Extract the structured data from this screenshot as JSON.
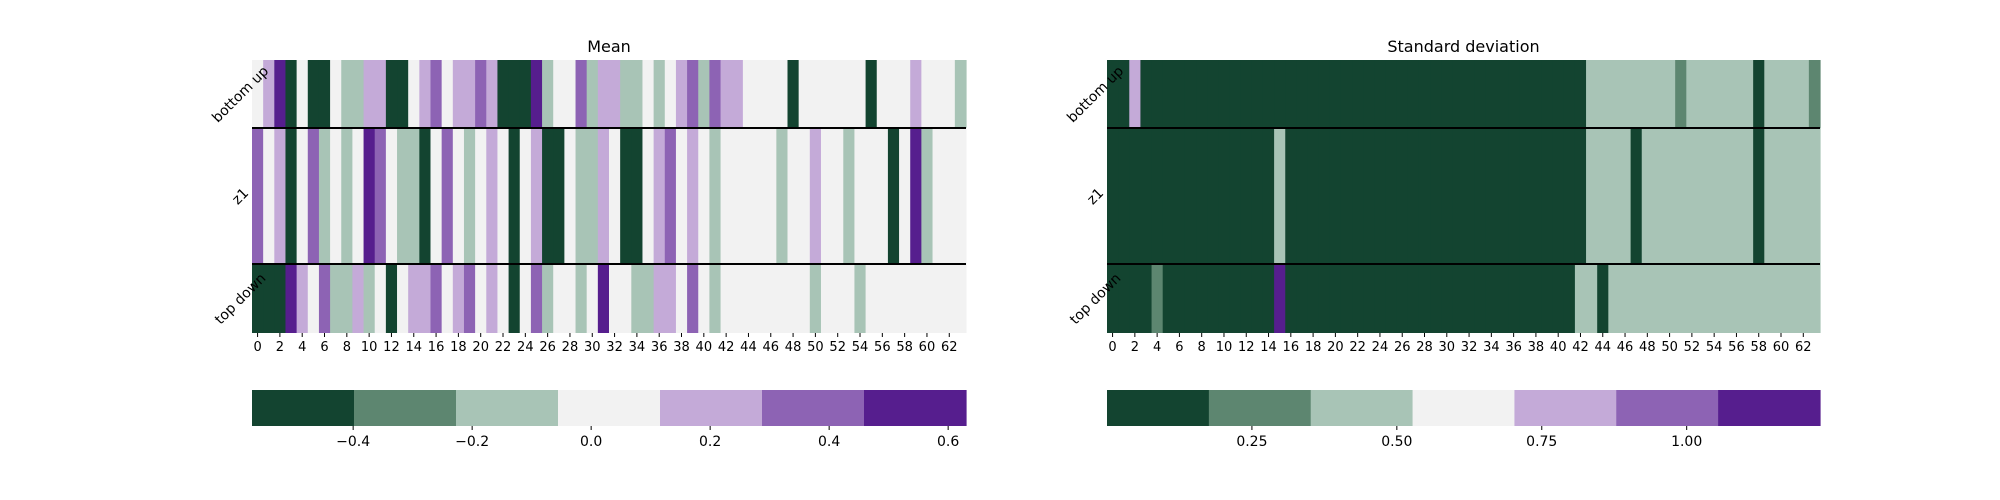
{
  "chart_data": [
    {
      "type": "heatmap",
      "title": "Mean",
      "rows": [
        "bottom up",
        "z1",
        "top down"
      ],
      "x_tick_labels": [
        "0",
        "2",
        "4",
        "6",
        "8",
        "10",
        "12",
        "14",
        "16",
        "18",
        "20",
        "22",
        "24",
        "26",
        "28",
        "30",
        "32",
        "34",
        "36",
        "38",
        "40",
        "42",
        "44",
        "46",
        "48",
        "50",
        "52",
        "54",
        "56",
        "58",
        "60",
        "62"
      ],
      "values": [
        [
          0.0,
          0.2,
          0.6,
          -0.4,
          0.0,
          -0.4,
          -0.4,
          0.0,
          -0.2,
          -0.2,
          0.2,
          0.2,
          -0.4,
          -0.4,
          0.0,
          0.2,
          0.4,
          0.0,
          0.2,
          0.2,
          0.4,
          0.2,
          -0.4,
          -0.6,
          -0.4,
          0.6,
          -0.2,
          0.0,
          0.0,
          0.4,
          -0.2,
          0.2,
          0.2,
          -0.2,
          -0.2,
          0.0,
          -0.2,
          0.0,
          0.2,
          0.4,
          -0.2,
          0.4,
          0.2,
          0.2,
          0.0,
          0.0,
          0.0,
          0.0,
          -0.4,
          0.0,
          0.0,
          0.0,
          0.0,
          0.0,
          0.0,
          -0.6,
          0.0,
          0.0,
          0.0,
          0.2,
          0.0,
          0.0,
          0.0,
          -0.2
        ],
        [
          0.4,
          0.0,
          0.2,
          -0.4,
          0.0,
          0.4,
          -0.2,
          0.0,
          -0.2,
          0.0,
          0.6,
          0.4,
          0.0,
          -0.2,
          -0.2,
          -0.4,
          0.0,
          0.4,
          0.0,
          -0.2,
          0.0,
          0.2,
          0.0,
          -0.4,
          0.0,
          0.2,
          -0.4,
          -0.4,
          0.0,
          -0.2,
          -0.2,
          0.2,
          0.0,
          -0.4,
          -0.4,
          0.0,
          0.2,
          0.4,
          0.0,
          0.2,
          0.0,
          -0.2,
          0.0,
          0.0,
          0.0,
          0.0,
          0.0,
          -0.2,
          0.0,
          0.0,
          0.2,
          0.0,
          0.0,
          -0.2,
          0.0,
          0.0,
          0.0,
          -0.4,
          0.0,
          0.6,
          -0.2,
          0.0,
          0.0,
          0.0
        ],
        [
          -0.4,
          -0.6,
          -0.4,
          0.6,
          0.2,
          0.0,
          0.4,
          -0.2,
          -0.2,
          0.2,
          -0.2,
          0.0,
          -0.4,
          0.0,
          0.2,
          0.2,
          0.4,
          0.0,
          0.2,
          0.4,
          0.0,
          0.2,
          0.0,
          -0.4,
          0.0,
          0.4,
          -0.2,
          0.0,
          0.0,
          -0.2,
          0.0,
          0.6,
          0.0,
          0.0,
          -0.2,
          -0.2,
          0.2,
          0.2,
          0.0,
          0.4,
          0.0,
          -0.2,
          0.0,
          0.0,
          0.0,
          0.0,
          0.0,
          0.0,
          0.0,
          0.0,
          -0.2,
          0.0,
          0.0,
          0.0,
          -0.2,
          0.0,
          0.0,
          0.0,
          0.0,
          0.0,
          0.0,
          0.0,
          0.0,
          0.0
        ]
      ],
      "colorbar": {
        "range": [
          -0.57,
          0.63
        ],
        "ticks": [
          -0.4,
          -0.2,
          0.0,
          0.2,
          0.4,
          0.6
        ],
        "tick_labels": [
          "−0.4",
          "−0.2",
          "0.0",
          "0.2",
          "0.4",
          "0.6"
        ],
        "colors": [
          "#134430",
          "#5d8670",
          "#a8c4b6",
          "#f2f2f2",
          "#c4aad8",
          "#8d63b4",
          "#561e8e"
        ]
      }
    },
    {
      "type": "heatmap",
      "title": "Standard deviation",
      "rows": [
        "bottom up",
        "z1",
        "top down"
      ],
      "x_tick_labels": [
        "0",
        "2",
        "4",
        "6",
        "8",
        "10",
        "12",
        "14",
        "16",
        "18",
        "20",
        "22",
        "24",
        "26",
        "28",
        "30",
        "32",
        "34",
        "36",
        "38",
        "40",
        "42",
        "44",
        "46",
        "48",
        "50",
        "52",
        "54",
        "56",
        "58",
        "60",
        "62"
      ],
      "values": [
        [
          0.08,
          0.08,
          0.8,
          0.08,
          0.08,
          0.08,
          0.08,
          0.08,
          0.08,
          0.08,
          0.08,
          0.08,
          0.08,
          0.08,
          0.08,
          0.08,
          0.08,
          0.08,
          0.08,
          0.08,
          0.08,
          0.08,
          0.08,
          0.08,
          0.08,
          0.08,
          0.08,
          0.08,
          0.08,
          0.08,
          0.08,
          0.08,
          0.08,
          0.08,
          0.08,
          0.08,
          0.08,
          0.08,
          0.08,
          0.08,
          0.08,
          0.08,
          0.08,
          0.5,
          0.5,
          0.5,
          0.5,
          0.5,
          0.5,
          0.5,
          0.5,
          0.3,
          0.5,
          0.5,
          0.5,
          0.5,
          0.5,
          0.5,
          0.08,
          0.5,
          0.5,
          0.5,
          0.5,
          0.3
        ],
        [
          0.08,
          0.08,
          0.08,
          0.08,
          0.08,
          0.08,
          0.08,
          0.08,
          0.08,
          0.08,
          0.08,
          0.08,
          0.08,
          0.08,
          0.08,
          0.5,
          0.08,
          0.08,
          0.08,
          0.08,
          0.08,
          0.08,
          0.08,
          0.08,
          0.08,
          0.08,
          0.08,
          0.08,
          0.08,
          0.08,
          0.08,
          0.08,
          0.08,
          0.08,
          0.08,
          0.08,
          0.08,
          0.08,
          0.08,
          0.08,
          0.08,
          0.08,
          0.08,
          0.5,
          0.5,
          0.5,
          0.5,
          0.08,
          0.5,
          0.5,
          0.5,
          0.5,
          0.5,
          0.5,
          0.5,
          0.5,
          0.5,
          0.5,
          0.08,
          0.5,
          0.5,
          0.5,
          0.5,
          0.5
        ],
        [
          0.08,
          0.08,
          0.08,
          0.08,
          0.3,
          0.08,
          0.08,
          0.08,
          0.08,
          0.08,
          0.08,
          0.08,
          0.08,
          0.08,
          0.08,
          1.2,
          0.08,
          0.08,
          0.08,
          0.08,
          0.08,
          0.08,
          0.08,
          0.08,
          0.08,
          0.08,
          0.08,
          0.08,
          0.08,
          0.08,
          0.08,
          0.08,
          0.08,
          0.08,
          0.08,
          0.08,
          0.08,
          0.08,
          0.08,
          0.08,
          0.08,
          0.08,
          0.5,
          0.5,
          0.08,
          0.5,
          0.5,
          0.5,
          0.5,
          0.5,
          0.5,
          0.5,
          0.5,
          0.5,
          0.5,
          0.5,
          0.5,
          0.5,
          0.5,
          0.5,
          0.5,
          0.5,
          0.5,
          0.5
        ]
      ],
      "colorbar": {
        "range": [
          0.0,
          1.23
        ],
        "ticks": [
          0.25,
          0.5,
          0.75,
          1.0
        ],
        "tick_labels": [
          "0.25",
          "0.50",
          "0.75",
          "1.00"
        ],
        "colors": [
          "#134430",
          "#5d8670",
          "#a8c4b6",
          "#f2f2f2",
          "#c4aad8",
          "#8d63b4",
          "#561e8e"
        ]
      }
    }
  ]
}
